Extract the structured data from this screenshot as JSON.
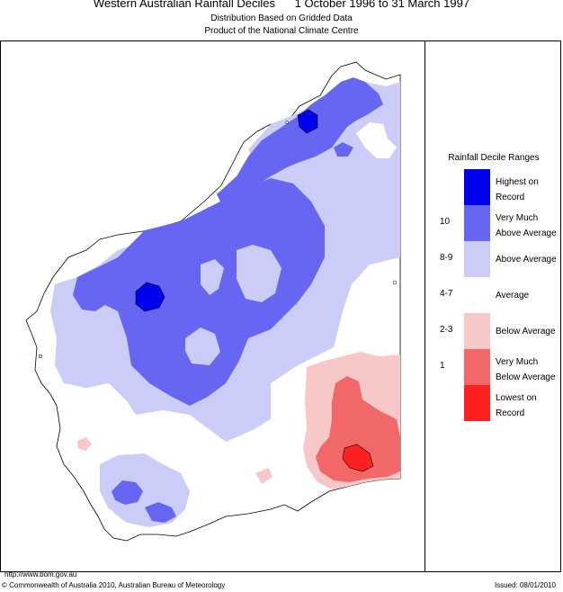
{
  "header": {
    "title": "Western Australian Rainfall Deciles      1 October 1996 to 31 March 1997",
    "subtitle1": "Distribution Based on Gridded Data",
    "subtitle2": "Product of the National Climate Centre"
  },
  "colors": {
    "highest": "#0000ee",
    "very_much_above": "#6666f2",
    "above": "#ccccf8",
    "average": "#ffffff",
    "below": "#f8c8c8",
    "very_much_below": "#f26868",
    "lowest": "#ff2020",
    "border": "#000000"
  },
  "legend": {
    "title": "Rainfall Decile Ranges",
    "rows": [
      {
        "num": "",
        "label1": "Highest on",
        "label2": "Record",
        "color": "#0000ee"
      },
      {
        "num": "10",
        "label1": "Very Much",
        "label2": "Above Average",
        "color": "#6666f2"
      },
      {
        "num": "8-9",
        "label1": "Above Average",
        "label2": "",
        "color": "#ccccf8"
      },
      {
        "num": "4-7",
        "label1": "Average",
        "label2": "",
        "color": "#ffffff"
      },
      {
        "num": "2-3",
        "label1": "Below Average",
        "label2": "",
        "color": "#f8c8c8"
      },
      {
        "num": "1",
        "label1": "Very Much",
        "label2": "Below Average",
        "color": "#f26868"
      },
      {
        "num": "",
        "label1": "Lowest on",
        "label2": "Record",
        "color": "#ff2020"
      }
    ]
  },
  "footer": {
    "url": "http://www.bom.gov.au",
    "copyright": "© Commonwealth of Australia 2010, Australian Bureau of Meteorology",
    "issued": "Issued: 08/01/2010"
  }
}
